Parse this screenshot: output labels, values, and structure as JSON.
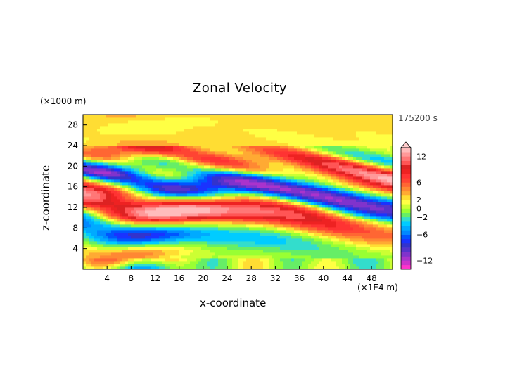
{
  "chart_data": {
    "type": "heatmap",
    "title": "Zonal Velocity",
    "xlabel": "x-coordinate",
    "ylabel": "z-coordinate",
    "x_unit": "(×1E4 m)",
    "y_unit": "(×1000 m)",
    "time_label": "175200 s",
    "xlim": [
      0,
      51.5
    ],
    "ylim": [
      0,
      30
    ],
    "x_ticks": [
      4,
      8,
      12,
      16,
      20,
      24,
      28,
      32,
      36,
      40,
      44,
      48
    ],
    "y_ticks": [
      4,
      8,
      12,
      16,
      20,
      24,
      28
    ],
    "grid": false,
    "colorbar": {
      "levels": [
        -14,
        -13,
        -12,
        -11,
        -10,
        -9,
        -8,
        -7,
        -6,
        -5,
        -4,
        -3,
        -2,
        -1,
        0,
        1,
        2,
        3,
        4,
        5,
        6,
        7,
        8,
        9,
        10,
        11,
        12,
        13,
        14
      ],
      "tick_labels": [
        "12",
        "6",
        "2",
        "0",
        "−2",
        "−6",
        "−12"
      ],
      "tick_values": [
        12,
        6,
        2,
        0,
        -2,
        -6,
        -12
      ],
      "colors": [
        "#ff33cc",
        "#cc33cc",
        "#aa33cc",
        "#8033cc",
        "#5533cc",
        "#3333cc",
        "#1a33ff",
        "#0055ff",
        "#0088ff",
        "#00aaff",
        "#00ccff",
        "#33ddcc",
        "#66ee66",
        "#99ff33",
        "#ccff33",
        "#ffff44",
        "#ffdd33",
        "#ffaa33",
        "#ff8833",
        "#ff6633",
        "#ff4433",
        "#ff3333",
        "#ee2222",
        "#dd2222",
        "#ff5555",
        "#ff7777",
        "#ff9999",
        "#ffbbbb"
      ],
      "extend": "max"
    },
    "field_description": "u(x,z) wind component, alternating positive/negative bands tilted with height"
  }
}
